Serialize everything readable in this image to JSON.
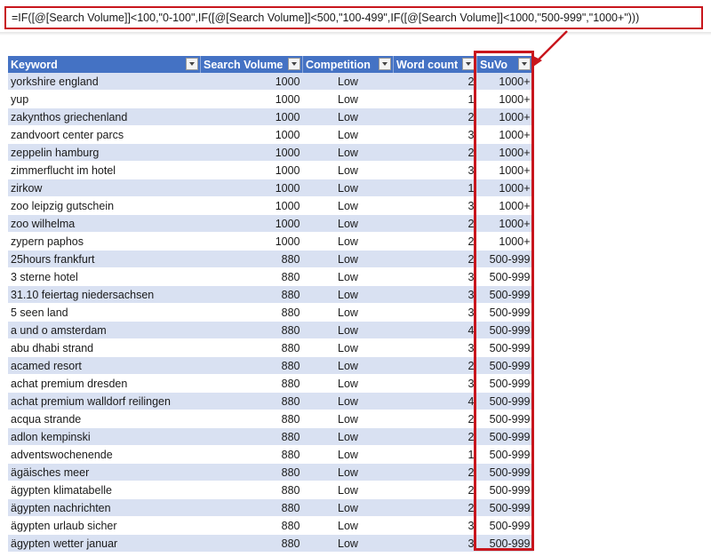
{
  "formula": "=IF([@[Search Volume]]<100,\"0-100\",IF([@[Search Volume]]<500,\"100-499\",IF([@[Search Volume]]<1000,\"500-999\",\"1000+\")))",
  "table": {
    "headers": [
      "Keyword",
      "Search Volume",
      "Competition",
      "Word count",
      "SuVo"
    ],
    "rows": [
      [
        "yorkshire england",
        "1000",
        "Low",
        "2",
        "1000+"
      ],
      [
        "yup",
        "1000",
        "Low",
        "1",
        "1000+"
      ],
      [
        "zakynthos griechenland",
        "1000",
        "Low",
        "2",
        "1000+"
      ],
      [
        "zandvoort center parcs",
        "1000",
        "Low",
        "3",
        "1000+"
      ],
      [
        "zeppelin hamburg",
        "1000",
        "Low",
        "2",
        "1000+"
      ],
      [
        "zimmerflucht im hotel",
        "1000",
        "Low",
        "3",
        "1000+"
      ],
      [
        "zirkow",
        "1000",
        "Low",
        "1",
        "1000+"
      ],
      [
        "zoo leipzig gutschein",
        "1000",
        "Low",
        "3",
        "1000+"
      ],
      [
        "zoo wilhelma",
        "1000",
        "Low",
        "2",
        "1000+"
      ],
      [
        "zypern paphos",
        "1000",
        "Low",
        "2",
        "1000+"
      ],
      [
        "25hours frankfurt",
        "880",
        "Low",
        "2",
        "500-999"
      ],
      [
        "3 sterne hotel",
        "880",
        "Low",
        "3",
        "500-999"
      ],
      [
        "31.10 feiertag niedersachsen",
        "880",
        "Low",
        "3",
        "500-999"
      ],
      [
        "5 seen land",
        "880",
        "Low",
        "3",
        "500-999"
      ],
      [
        "a und o amsterdam",
        "880",
        "Low",
        "4",
        "500-999"
      ],
      [
        "abu dhabi strand",
        "880",
        "Low",
        "3",
        "500-999"
      ],
      [
        "acamed resort",
        "880",
        "Low",
        "2",
        "500-999"
      ],
      [
        "achat premium dresden",
        "880",
        "Low",
        "3",
        "500-999"
      ],
      [
        "achat premium walldorf reilingen",
        "880",
        "Low",
        "4",
        "500-999"
      ],
      [
        "acqua strande",
        "880",
        "Low",
        "2",
        "500-999"
      ],
      [
        "adlon kempinski",
        "880",
        "Low",
        "2",
        "500-999"
      ],
      [
        "adventswochenende",
        "880",
        "Low",
        "1",
        "500-999"
      ],
      [
        "ägäisches meer",
        "880",
        "Low",
        "2",
        "500-999"
      ],
      [
        "ägypten klimatabelle",
        "880",
        "Low",
        "2",
        "500-999"
      ],
      [
        "ägypten nachrichten",
        "880",
        "Low",
        "2",
        "500-999"
      ],
      [
        "ägypten urlaub sicher",
        "880",
        "Low",
        "3",
        "500-999"
      ],
      [
        "ägypten wetter januar",
        "880",
        "Low",
        "3",
        "500-999"
      ]
    ]
  },
  "colors": {
    "header_bg": "#4472c4",
    "band_row": "#d9e1f2",
    "highlight": "#c8161d"
  }
}
